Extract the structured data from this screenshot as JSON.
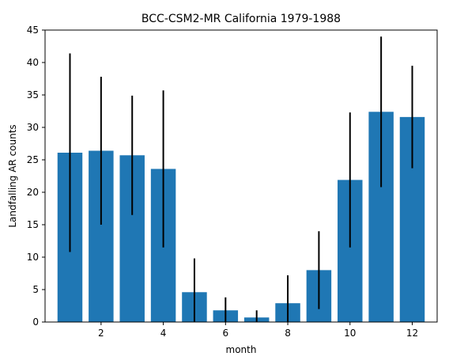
{
  "chart_data": {
    "type": "bar",
    "title": "BCC-CSM2-MR California 1979-1988",
    "xlabel": "month",
    "ylabel": "Landfalling AR counts",
    "x": [
      1,
      2,
      3,
      4,
      5,
      6,
      7,
      8,
      9,
      10,
      11,
      12
    ],
    "values": [
      26.1,
      26.4,
      25.7,
      23.6,
      4.6,
      1.8,
      0.7,
      2.9,
      8.0,
      21.9,
      32.4,
      31.6
    ],
    "error": [
      15.3,
      11.4,
      9.2,
      12.1,
      5.2,
      2.0,
      1.1,
      4.3,
      6.0,
      10.4,
      11.6,
      7.9
    ],
    "xlim": [
      0.2,
      12.8
    ],
    "ylim": [
      0,
      45
    ],
    "xticks": [
      2,
      4,
      6,
      8,
      10,
      12
    ],
    "yticks": [
      0,
      5,
      10,
      15,
      20,
      25,
      30,
      35,
      40,
      45
    ],
    "bar_color": "#1f77b4",
    "error_color": "#000000",
    "grid": false,
    "legend": "none"
  }
}
